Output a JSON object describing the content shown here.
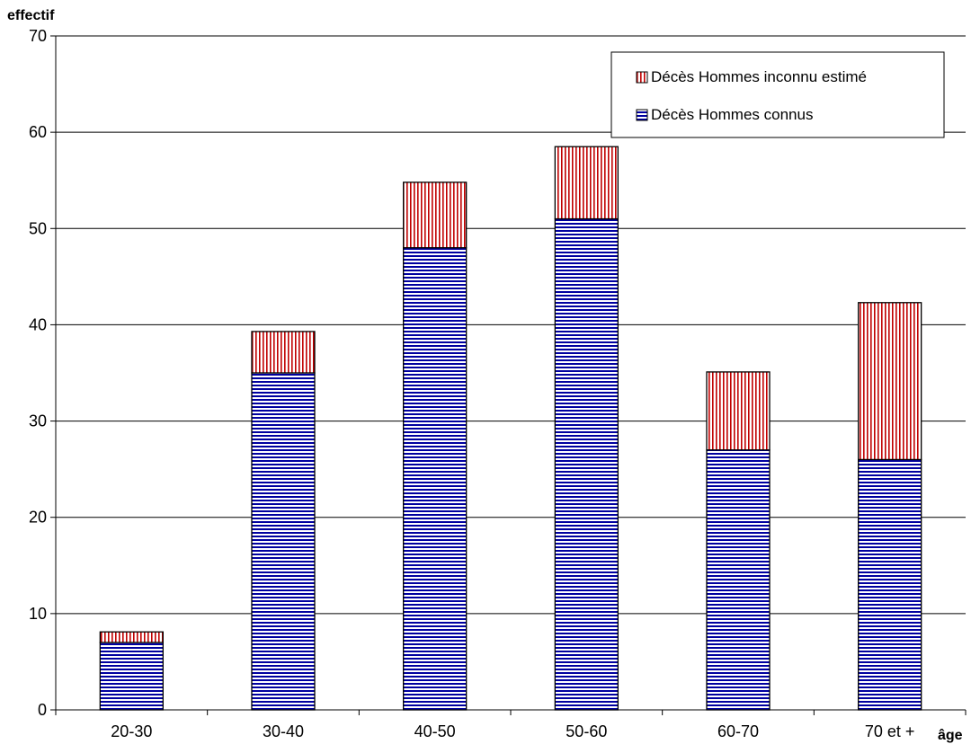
{
  "chart_data": {
    "type": "bar",
    "stacked": true,
    "categories": [
      "20-30",
      "30-40",
      "40-50",
      "50-60",
      "60-70",
      "70 et +"
    ],
    "series": [
      {
        "name": "Décès Hommes connus",
        "values": [
          7,
          35,
          48,
          51,
          27,
          26
        ],
        "color": "#0000a0",
        "pattern": "horizontal-lines"
      },
      {
        "name": "Décès Hommes inconnu estimé",
        "values": [
          1.1,
          4.3,
          6.8,
          7.5,
          8.1,
          16.3
        ],
        "color": "#c00000",
        "pattern": "vertical-lines"
      }
    ],
    "xlabel": "âge",
    "ylabel": "effectif",
    "ylim": [
      0,
      70
    ],
    "yticks": [
      0,
      10,
      20,
      30,
      40,
      50,
      60,
      70
    ],
    "grid": true,
    "legend_position": "top-right"
  }
}
